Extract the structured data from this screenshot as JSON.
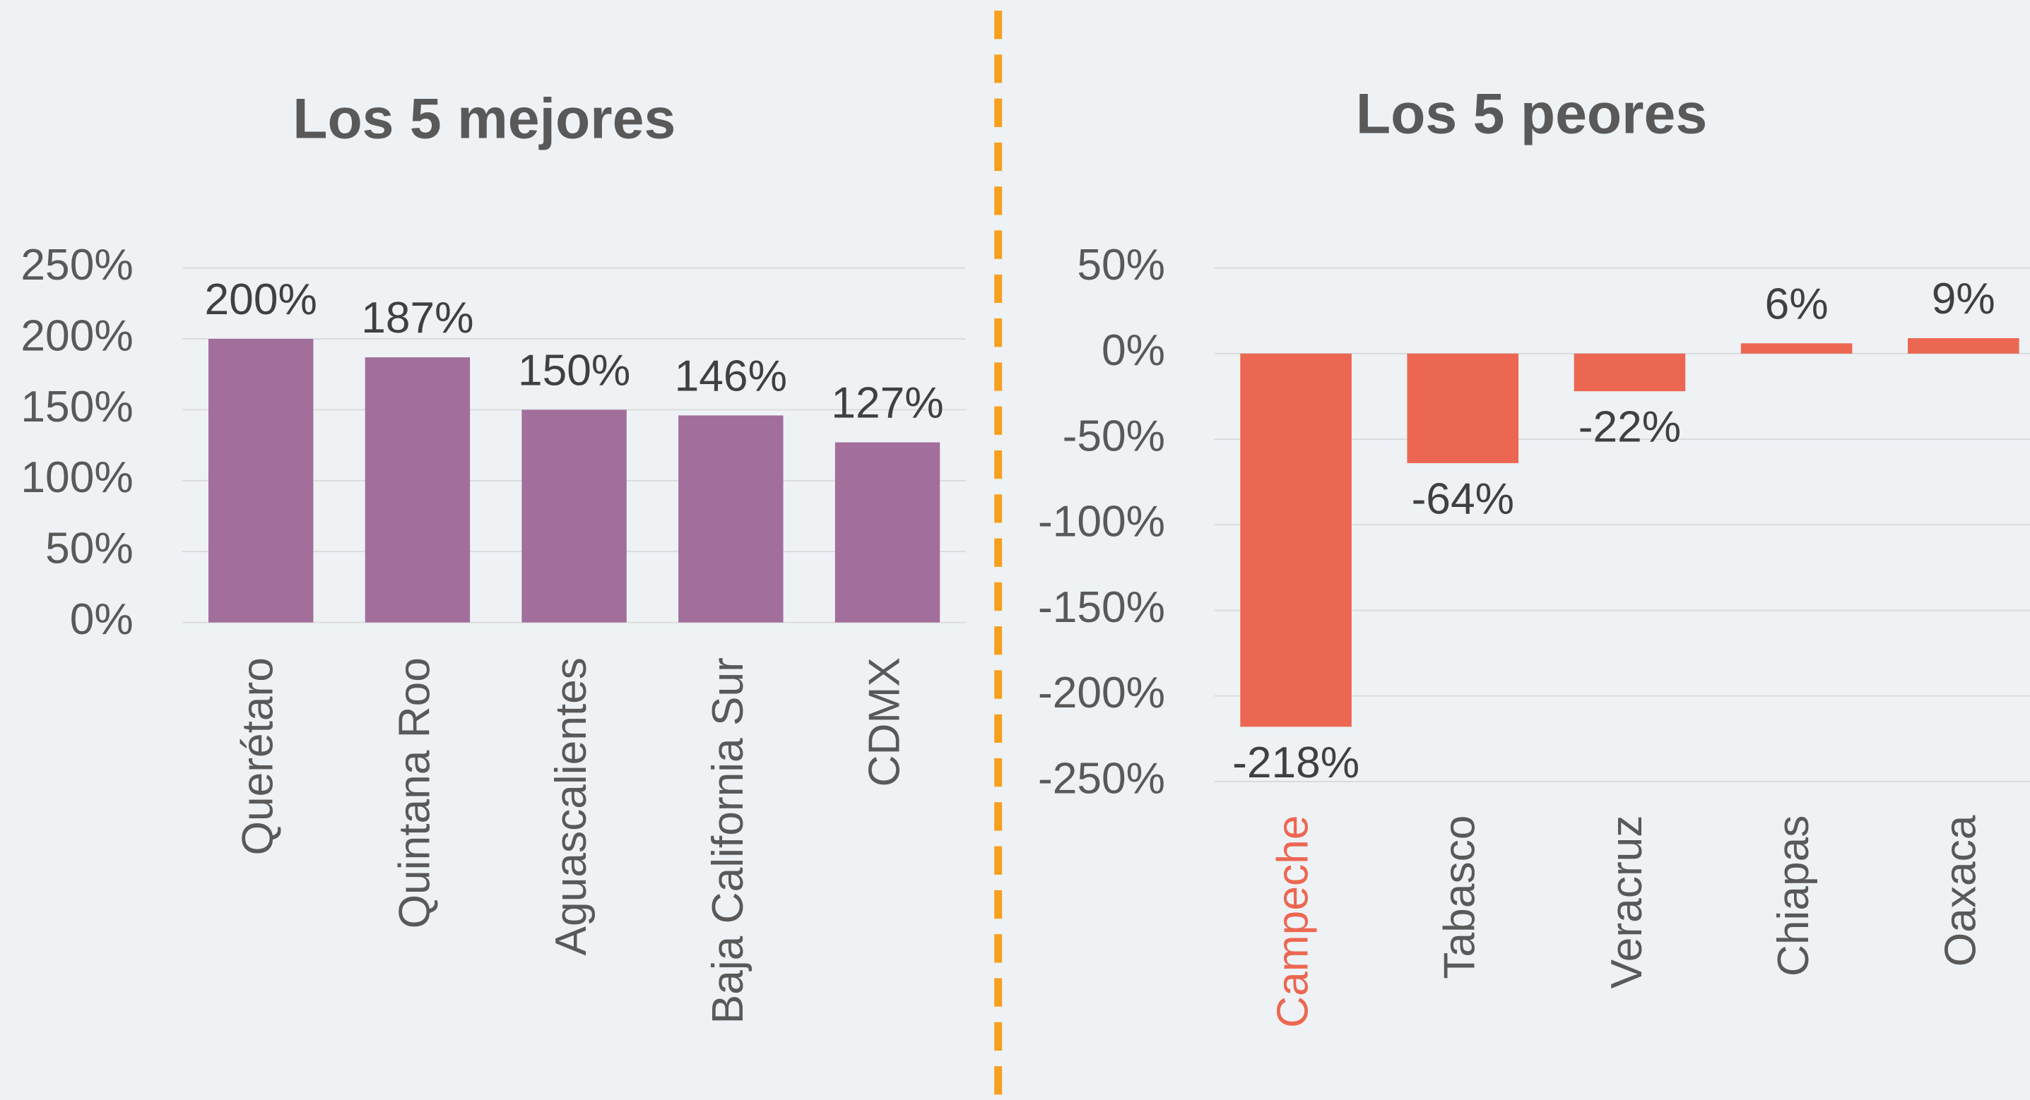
{
  "chart_data": [
    {
      "type": "bar",
      "title": "Los 5 mejores",
      "categories": [
        "Querétaro",
        "Quintana Roo",
        "Aguascalientes",
        "Baja California Sur",
        "CDMX"
      ],
      "values": [
        200,
        187,
        150,
        146,
        127
      ],
      "value_labels": [
        "200%",
        "187%",
        "150%",
        "146%",
        "127%"
      ],
      "color": "#a26e9b",
      "ylim": [
        0,
        250
      ],
      "yticks": [
        {
          "value": 0,
          "label": "0%"
        },
        {
          "value": 50,
          "label": "50%"
        },
        {
          "value": 100,
          "label": "100%"
        },
        {
          "value": 150,
          "label": "150%"
        },
        {
          "value": 200,
          "label": "200%"
        },
        {
          "value": 250,
          "label": "250%"
        }
      ],
      "grid": true
    },
    {
      "type": "bar",
      "title": "Los 5 peores",
      "categories": [
        "Campeche",
        "Tabasco",
        "Veracruz",
        "Chiapas",
        "Oaxaca"
      ],
      "values": [
        -218,
        -64,
        -22,
        6,
        9
      ],
      "value_labels": [
        "-218%",
        "-64%",
        "-22%",
        "6%",
        "9%"
      ],
      "color": "#ec6752",
      "category_label_colors": [
        "#ec6752",
        "#595959",
        "#595959",
        "#595959",
        "#595959"
      ],
      "ylim": [
        -250,
        50
      ],
      "yticks": [
        {
          "value": -250,
          "label": "-250%"
        },
        {
          "value": -200,
          "label": "-200%"
        },
        {
          "value": -150,
          "label": "-150%"
        },
        {
          "value": -100,
          "label": "-100%"
        },
        {
          "value": -50,
          "label": "-50%"
        },
        {
          "value": 0,
          "label": "0%"
        },
        {
          "value": 50,
          "label": "50%"
        }
      ],
      "grid": true
    }
  ]
}
